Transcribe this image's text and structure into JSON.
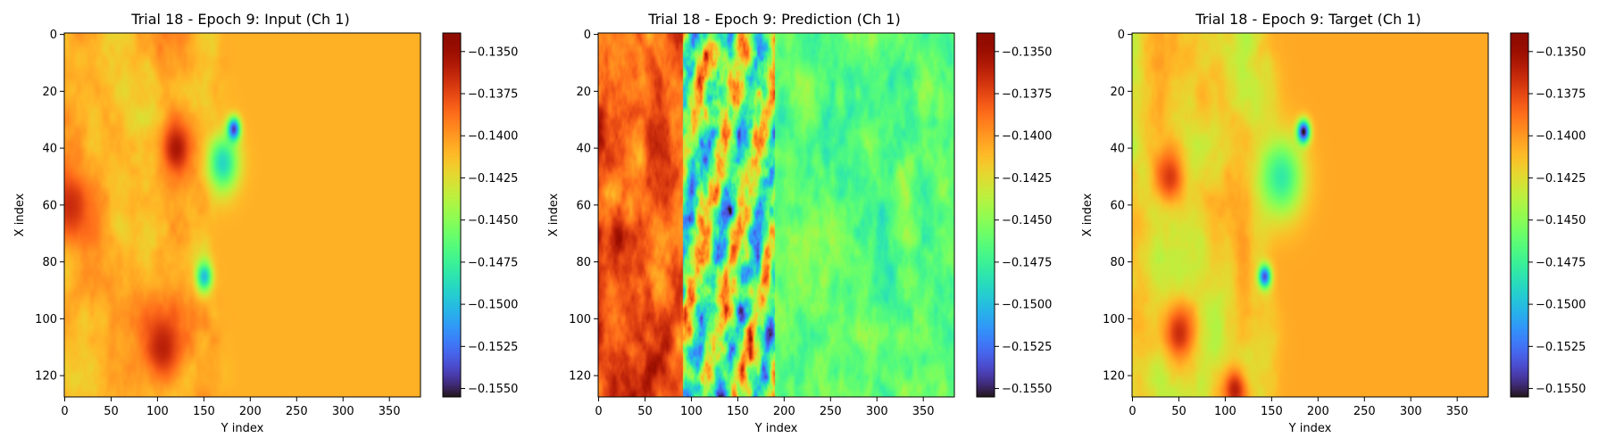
{
  "chart_data": [
    {
      "type": "heatmap",
      "title": "Trial 18 - Epoch 9: Input (Ch 1)",
      "xlabel": "Y index",
      "ylabel": "X index",
      "xlim": [
        0,
        383
      ],
      "ylim": [
        127,
        0
      ],
      "xticks": [
        0,
        50,
        100,
        150,
        200,
        250,
        300,
        350
      ],
      "yticks": [
        0,
        20,
        40,
        60,
        80,
        100,
        120
      ],
      "colormap": "turbo",
      "clim": [
        -0.1555,
        -0.1339
      ],
      "colorbar_ticks": [
        "−0.1350",
        "−0.1375",
        "−0.1400",
        "−0.1425",
        "−0.1450",
        "−0.1475",
        "−0.1500",
        "−0.1525",
        "−0.1550"
      ],
      "colorbar_tick_values": [
        -0.135,
        -0.1375,
        -0.14,
        -0.1425,
        -0.145,
        -0.1475,
        -0.15,
        -0.1525,
        -0.155
      ],
      "field_profile": {
        "left_region_mean": -0.1405,
        "left_region_variability": 0.0022,
        "front_y": 165,
        "right_region_value": -0.1408,
        "blobs": [
          {
            "x": 33,
            "y": 182,
            "value": -0.153,
            "size": 4
          },
          {
            "x": 45,
            "y": 170,
            "value": -0.149,
            "size": 10
          },
          {
            "x": 85,
            "y": 150,
            "value": -0.15,
            "size": 5
          },
          {
            "x": 40,
            "y": 120,
            "value": -0.1355,
            "size": 10
          },
          {
            "x": 110,
            "y": 105,
            "value": -0.136,
            "size": 12
          },
          {
            "x": 60,
            "y": 5,
            "value": -0.1365,
            "size": 12
          }
        ]
      }
    },
    {
      "type": "heatmap",
      "title": "Trial 18 - Epoch 9: Prediction (Ch 1)",
      "xlabel": "Y index",
      "ylabel": "X index",
      "xlim": [
        0,
        383
      ],
      "ylim": [
        127,
        0
      ],
      "xticks": [
        0,
        50,
        100,
        150,
        200,
        250,
        300,
        350
      ],
      "yticks": [
        0,
        20,
        40,
        60,
        80,
        100,
        120
      ],
      "colormap": "turbo",
      "clim": [
        -0.1555,
        -0.1339
      ],
      "colorbar_ticks": [
        "−0.1350",
        "−0.1375",
        "−0.1400",
        "−0.1425",
        "−0.1450",
        "−0.1475",
        "−0.1500",
        "−0.1525",
        "−0.1550"
      ],
      "colorbar_tick_values": [
        -0.135,
        -0.1375,
        -0.14,
        -0.1425,
        -0.145,
        -0.1475,
        -0.15,
        -0.1525,
        -0.155
      ],
      "field_profile": {
        "left_region_mean": -0.1375,
        "left_region_variability": 0.0035,
        "turbulent_band_y": [
          90,
          190
        ],
        "turbulent_band_variability": 0.01,
        "right_region_mean": -0.146,
        "right_region_variability": 0.003
      }
    },
    {
      "type": "heatmap",
      "title": "Trial 18 - Epoch 9: Target (Ch 1)",
      "xlabel": "Y index",
      "ylabel": "X index",
      "xlim": [
        0,
        383
      ],
      "ylim": [
        127,
        0
      ],
      "xticks": [
        0,
        50,
        100,
        150,
        200,
        250,
        300,
        350
      ],
      "yticks": [
        0,
        20,
        40,
        60,
        80,
        100,
        120
      ],
      "colormap": "turbo",
      "clim": [
        -0.1555,
        -0.1339
      ],
      "colorbar_ticks": [
        "−0.1350",
        "−0.1375",
        "−0.1400",
        "−0.1425",
        "−0.1450",
        "−0.1475",
        "−0.1500",
        "−0.1525",
        "−0.1550"
      ],
      "colorbar_tick_values": [
        -0.135,
        -0.1375,
        -0.14,
        -0.1425,
        -0.145,
        -0.1475,
        -0.15,
        -0.1525,
        -0.155
      ],
      "field_profile": {
        "left_region_mean": -0.142,
        "left_region_variability": 0.002,
        "front_y": 150,
        "right_region_value": -0.1405,
        "blobs": [
          {
            "x": 34,
            "y": 184,
            "value": -0.155,
            "size": 4
          },
          {
            "x": 85,
            "y": 142,
            "value": -0.1535,
            "size": 4
          },
          {
            "x": 50,
            "y": 160,
            "value": -0.148,
            "size": 14
          },
          {
            "x": 50,
            "y": 40,
            "value": -0.137,
            "size": 10
          },
          {
            "x": 105,
            "y": 50,
            "value": -0.1365,
            "size": 10
          },
          {
            "x": 125,
            "y": 110,
            "value": -0.136,
            "size": 8
          }
        ]
      }
    }
  ]
}
